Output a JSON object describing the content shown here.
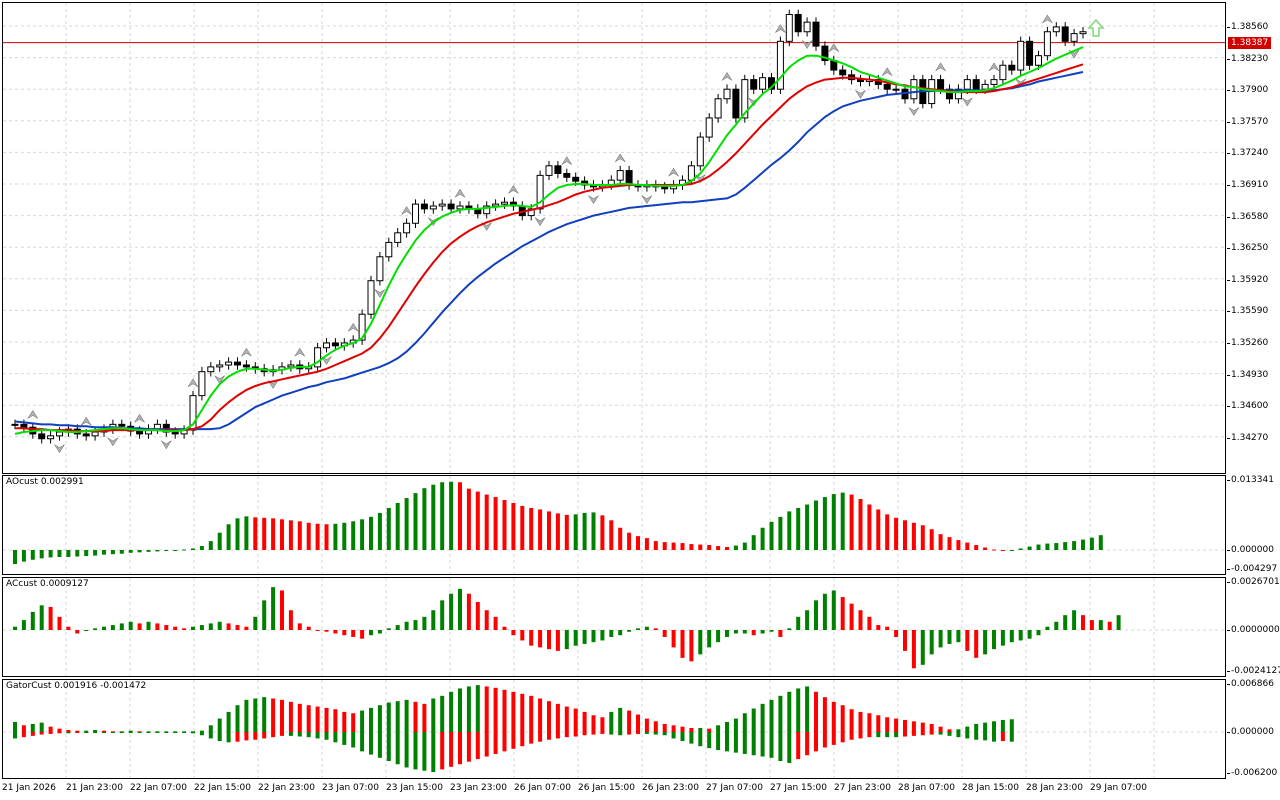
{
  "chart": {
    "price_scale": [
      "1.38560",
      "1.38230",
      "1.37900",
      "1.37570",
      "1.37240",
      "1.36910",
      "1.36580",
      "1.36250",
      "1.35920",
      "1.35590",
      "1.35260",
      "1.34930",
      "1.34600",
      "1.34270"
    ],
    "current_price": "1.38387",
    "up_arrow_color": "#7fd67f"
  },
  "indicators": {
    "ao": {
      "label": "AOcust 0.002991",
      "scale": [
        "0.013341",
        "0.000000",
        "-0.004297"
      ]
    },
    "ac": {
      "label": "ACcust 0.0009127",
      "scale": [
        "0.0026701",
        "0.0000000",
        "-0.0024127"
      ]
    },
    "gator": {
      "label": "GatorCust 0.001916 -0.001472",
      "scale": [
        "0.006866",
        "0.000000",
        "-0.006200"
      ]
    }
  },
  "time_axis": [
    "21 Jan 2026",
    "21 Jan 23:00",
    "22 Jan 07:00",
    "22 Jan 15:00",
    "22 Jan 23:00",
    "23 Jan 07:00",
    "23 Jan 15:00",
    "23 Jan 23:00",
    "26 Jan 07:00",
    "26 Jan 15:00",
    "26 Jan 23:00",
    "27 Jan 07:00",
    "27 Jan 15:00",
    "27 Jan 23:00",
    "28 Jan 07:00",
    "28 Jan 15:00",
    "28 Jan 23:00",
    "29 Jan 07:00"
  ],
  "colors": {
    "up": "#008000",
    "down": "#ff0000",
    "lips": "#00e000",
    "teeth": "#e00000",
    "jaw": "#1040c0",
    "grid": "#d8d8d8",
    "price_line": "#d00000"
  },
  "chart_data": [
    {
      "type": "candlestick",
      "title": "",
      "ylim": [
        1.3405,
        1.3895
      ],
      "close_path": [
        1.344,
        1.3437,
        1.343,
        1.3425,
        1.3428,
        1.3432,
        1.3435,
        1.343,
        1.3428,
        1.3432,
        1.3435,
        1.344,
        1.3438,
        1.3433,
        1.343,
        1.3435,
        1.344,
        1.3432,
        1.343,
        1.3434,
        1.347,
        1.3495,
        1.35,
        1.3502,
        1.3505,
        1.3502,
        1.35,
        1.3498,
        1.3495,
        1.3497,
        1.35,
        1.3502,
        1.3498,
        1.35,
        1.352,
        1.3525,
        1.3522,
        1.3525,
        1.3528,
        1.3555,
        1.359,
        1.3615,
        1.363,
        1.364,
        1.365,
        1.367,
        1.3665,
        1.3668,
        1.367,
        1.3665,
        1.3668,
        1.3665,
        1.366,
        1.3668,
        1.367,
        1.3672,
        1.3668,
        1.3658,
        1.3665,
        1.37,
        1.371,
        1.3702,
        1.3698,
        1.3694,
        1.369,
        1.3688,
        1.369,
        1.3695,
        1.3705,
        1.369,
        1.3688,
        1.369,
        1.3688,
        1.3686,
        1.369,
        1.3695,
        1.371,
        1.374,
        1.376,
        1.378,
        1.379,
        1.376,
        1.38,
        1.379,
        1.3802,
        1.379,
        1.384,
        1.3868,
        1.385,
        1.386,
        1.3835,
        1.382,
        1.381,
        1.3805,
        1.38,
        1.3798,
        1.38,
        1.3795,
        1.379,
        1.379,
        1.378,
        1.38,
        1.3775,
        1.38,
        1.379,
        1.378,
        1.379,
        1.38,
        1.379,
        1.3795,
        1.38,
        1.3815,
        1.381,
        1.384,
        1.3815,
        1.3825,
        1.385,
        1.3855,
        1.384,
        1.3848,
        1.385
      ],
      "lips": [
        1.343,
        1.3432,
        1.3433,
        1.3434,
        1.3434,
        1.3433,
        1.3432,
        1.3432,
        1.3433,
        1.3434,
        1.3435,
        1.3436,
        1.3436,
        1.3435,
        1.3434,
        1.3434,
        1.3434,
        1.3433,
        1.3433,
        1.3434,
        1.344,
        1.3455,
        1.347,
        1.3482,
        1.349,
        1.3495,
        1.3498,
        1.3498,
        1.3497,
        1.3496,
        1.3497,
        1.3499,
        1.35,
        1.35,
        1.3505,
        1.3512,
        1.3518,
        1.3522,
        1.3525,
        1.353,
        1.3545,
        1.3565,
        1.3585,
        1.3603,
        1.3618,
        1.3632,
        1.3643,
        1.3651,
        1.3657,
        1.3661,
        1.3664,
        1.3665,
        1.3665,
        1.3666,
        1.3667,
        1.3668,
        1.3669,
        1.3668,
        1.3667,
        1.3672,
        1.368,
        1.3687,
        1.369,
        1.3691,
        1.3691,
        1.369,
        1.369,
        1.369,
        1.3691,
        1.3691,
        1.369,
        1.369,
        1.3689,
        1.3689,
        1.3689,
        1.369,
        1.3694,
        1.3702,
        1.3714,
        1.3728,
        1.3742,
        1.3753,
        1.3765,
        1.3775,
        1.3785,
        1.3792,
        1.3802,
        1.3813,
        1.382,
        1.3825,
        1.3825,
        1.3823,
        1.382,
        1.3817,
        1.3813,
        1.3808,
        1.3805,
        1.3802,
        1.3799,
        1.3796,
        1.3793,
        1.3792,
        1.379,
        1.3789,
        1.3788,
        1.3787,
        1.3787,
        1.3788,
        1.3788,
        1.3789,
        1.3791,
        1.3795,
        1.3799,
        1.3804,
        1.3808,
        1.3812,
        1.3817,
        1.3822,
        1.3826,
        1.383,
        1.3834
      ],
      "teeth": [
        1.3436,
        1.3436,
        1.3435,
        1.3435,
        1.3434,
        1.3434,
        1.3434,
        1.3433,
        1.3433,
        1.3433,
        1.3433,
        1.3434,
        1.3434,
        1.3434,
        1.3434,
        1.3434,
        1.3434,
        1.3434,
        1.3434,
        1.3434,
        1.3435,
        1.3438,
        1.3445,
        1.3455,
        1.3463,
        1.347,
        1.3476,
        1.348,
        1.3483,
        1.3485,
        1.3487,
        1.3489,
        1.3491,
        1.3493,
        1.3495,
        1.3498,
        1.3502,
        1.3506,
        1.351,
        1.3514,
        1.352,
        1.353,
        1.3542,
        1.3556,
        1.357,
        1.3584,
        1.3597,
        1.3609,
        1.362,
        1.3629,
        1.3636,
        1.3642,
        1.3647,
        1.3651,
        1.3654,
        1.3657,
        1.366,
        1.3662,
        1.3664,
        1.3666,
        1.3669,
        1.3672,
        1.3676,
        1.368,
        1.3683,
        1.3685,
        1.3687,
        1.3688,
        1.3689,
        1.369,
        1.369,
        1.369,
        1.369,
        1.369,
        1.369,
        1.369,
        1.3691,
        1.3694,
        1.3699,
        1.3706,
        1.3714,
        1.3723,
        1.3733,
        1.3743,
        1.3753,
        1.3762,
        1.3771,
        1.378,
        1.3787,
        1.3793,
        1.3797,
        1.38,
        1.3801,
        1.3802,
        1.3802,
        1.3801,
        1.38,
        1.3799,
        1.3797,
        1.3795,
        1.3794,
        1.3792,
        1.3791,
        1.379,
        1.3789,
        1.3788,
        1.3787,
        1.3787,
        1.3787,
        1.3787,
        1.3788,
        1.379,
        1.3792,
        1.3795,
        1.3798,
        1.3801,
        1.3804,
        1.3807,
        1.381,
        1.3813,
        1.3816
      ],
      "jaw": [
        1.3443,
        1.3442,
        1.3441,
        1.344,
        1.344,
        1.3439,
        1.3439,
        1.3438,
        1.3438,
        1.3437,
        1.3437,
        1.3437,
        1.3436,
        1.3436,
        1.3436,
        1.3435,
        1.3435,
        1.3435,
        1.3435,
        1.3435,
        1.3435,
        1.3435,
        1.3435,
        1.3436,
        1.344,
        1.3446,
        1.3452,
        1.3458,
        1.3462,
        1.3466,
        1.347,
        1.3473,
        1.3476,
        1.3479,
        1.3481,
        1.3484,
        1.3486,
        1.3488,
        1.3491,
        1.3494,
        1.3497,
        1.35,
        1.3504,
        1.3509,
        1.3516,
        1.3525,
        1.3535,
        1.3546,
        1.3557,
        1.3567,
        1.3577,
        1.3586,
        1.3594,
        1.3601,
        1.3608,
        1.3614,
        1.362,
        1.3626,
        1.3631,
        1.3636,
        1.3641,
        1.3645,
        1.3649,
        1.3652,
        1.3655,
        1.3658,
        1.366,
        1.3662,
        1.3664,
        1.3666,
        1.3667,
        1.3668,
        1.3669,
        1.367,
        1.3671,
        1.3672,
        1.3672,
        1.3673,
        1.3674,
        1.3675,
        1.3676,
        1.368,
        1.3687,
        1.3695,
        1.3703,
        1.3711,
        1.3718,
        1.3726,
        1.3735,
        1.3745,
        1.3753,
        1.3761,
        1.3767,
        1.3772,
        1.3775,
        1.3778,
        1.378,
        1.3782,
        1.3784,
        1.3785,
        1.3786,
        1.3787,
        1.3788,
        1.3788,
        1.3789,
        1.3789,
        1.3789,
        1.3789,
        1.3789,
        1.3789,
        1.3789,
        1.379,
        1.3791,
        1.3793,
        1.3795,
        1.3798,
        1.38,
        1.3802,
        1.3804,
        1.3806,
        1.3808
      ],
      "horizontal_line": 1.38387
    },
    {
      "type": "bar",
      "title": "AOcust 0.002991",
      "ylim": [
        -0.004297,
        0.013341
      ],
      "values": [
        -0.003,
        -0.0025,
        -0.0021,
        -0.0018,
        -0.0016,
        -0.0015,
        -0.0015,
        -0.0014,
        -0.0013,
        -0.0012,
        -0.001,
        -0.0009,
        -0.0008,
        -0.0006,
        -0.0005,
        -0.0004,
        -0.0003,
        -0.0002,
        -0.0001,
        0.0001,
        0.0003,
        0.0008,
        0.0018,
        0.0035,
        0.0052,
        0.0064,
        0.0068,
        0.0066,
        0.0065,
        0.0064,
        0.0062,
        0.006,
        0.0058,
        0.0055,
        0.0053,
        0.0052,
        0.0053,
        0.0055,
        0.0058,
        0.0062,
        0.0067,
        0.0075,
        0.0085,
        0.0095,
        0.0105,
        0.0115,
        0.0125,
        0.0132,
        0.0137,
        0.0138,
        0.0137,
        0.0124,
        0.0118,
        0.0112,
        0.0107,
        0.0101,
        0.0095,
        0.0089,
        0.0085,
        0.0082,
        0.0078,
        0.0074,
        0.0071,
        0.0072,
        0.0075,
        0.0076,
        0.007,
        0.006,
        0.0045,
        0.0035,
        0.0028,
        0.0024,
        0.0018,
        0.0016,
        0.0015,
        0.0014,
        0.0012,
        0.0011,
        0.001,
        0.0008,
        0.0006,
        0.0009,
        0.0015,
        0.003,
        0.0045,
        0.0057,
        0.0067,
        0.0078,
        0.0085,
        0.0092,
        0.01,
        0.0107,
        0.0113,
        0.0116,
        0.0112,
        0.0103,
        0.0092,
        0.0082,
        0.0072,
        0.0065,
        0.006,
        0.0055,
        0.005,
        0.0042,
        0.0032,
        0.0026,
        0.002,
        0.0015,
        0.001,
        0.0005,
        0.0001,
        -0.0002,
        0.0,
        0.0003,
        0.0007,
        0.0011,
        0.0013,
        0.0014,
        0.0016,
        0.0018,
        0.0021,
        0.0025,
        0.003
      ]
    },
    {
      "type": "bar",
      "title": "ACcust 0.0009127",
      "ylim": [
        -0.0024127,
        0.0026701
      ],
      "values": [
        0.0002,
        0.0006,
        0.0011,
        0.0015,
        0.0014,
        0.0008,
        0.0002,
        -0.0002,
        0.0,
        0.0001,
        0.0002,
        0.0003,
        0.0004,
        0.0005,
        0.0004,
        0.0005,
        0.0004,
        0.0003,
        0.0002,
        0.0001,
        0.0002,
        0.0003,
        0.0004,
        0.0005,
        0.0004,
        0.0003,
        0.0002,
        0.0008,
        0.0018,
        0.0026,
        0.0024,
        0.0012,
        0.0004,
        0.0002,
        0.0,
        -0.0001,
        -0.0002,
        -0.0003,
        -0.0004,
        -0.0005,
        -0.0003,
        -0.0002,
        0.0001,
        0.0003,
        0.0005,
        0.0006,
        0.0008,
        0.0012,
        0.0018,
        0.0022,
        0.0025,
        0.0022,
        0.0017,
        0.0012,
        0.0008,
        0.0002,
        -0.0003,
        -0.0006,
        -0.0009,
        -0.001,
        -0.0011,
        -0.0012,
        -0.0011,
        -0.0009,
        -0.0008,
        -0.0007,
        -0.0006,
        -0.0004,
        -0.0003,
        -0.0001,
        0.0001,
        0.0002,
        0.0001,
        -0.0004,
        -0.001,
        -0.0016,
        -0.0018,
        -0.0014,
        -0.001,
        -0.0007,
        -0.0004,
        -0.0002,
        -0.0002,
        -0.0003,
        -0.0002,
        -0.0001,
        -0.0004,
        0.0001,
        0.0008,
        0.0012,
        0.0018,
        0.0022,
        0.0024,
        0.002,
        0.0016,
        0.0012,
        0.0008,
        0.0003,
        0.0002,
        -0.0004,
        -0.0012,
        -0.0022,
        -0.002,
        -0.0014,
        -0.001,
        -0.0008,
        -0.0007,
        -0.0012,
        -0.0016,
        -0.0014,
        -0.0011,
        -0.0009,
        -0.0007,
        -0.0006,
        -0.0005,
        -0.0003,
        0.0002,
        0.0005,
        0.0009,
        0.0012,
        0.0009,
        0.0006,
        0.0006,
        0.0005,
        0.0009
      ]
    },
    {
      "type": "bar",
      "title": "GatorCust 0.001916 -0.001472",
      "ylim": [
        -0.0062,
        0.006866
      ],
      "upper": [
        0.0015,
        0.001,
        0.0012,
        0.0014,
        0.0008,
        0.0005,
        0.0003,
        0.0002,
        0.0002,
        0.0003,
        0.0002,
        0.0001,
        0.0001,
        0.0002,
        0.0001,
        0.0001,
        0.0001,
        0.0001,
        0.0001,
        0.0001,
        0.0001,
        0.0002,
        0.001,
        0.002,
        0.003,
        0.004,
        0.0048,
        0.005,
        0.0052,
        0.005,
        0.0048,
        0.0045,
        0.0042,
        0.004,
        0.0038,
        0.0036,
        0.0034,
        0.003,
        0.0028,
        0.0032,
        0.0036,
        0.004,
        0.0044,
        0.0046,
        0.0048,
        0.0045,
        0.0042,
        0.005,
        0.0054,
        0.006,
        0.0065,
        0.0068,
        0.007,
        0.0068,
        0.0066,
        0.0063,
        0.006,
        0.0057,
        0.0054,
        0.005,
        0.0046,
        0.0042,
        0.0038,
        0.0035,
        0.003,
        0.0025,
        0.0022,
        0.003,
        0.0036,
        0.0032,
        0.0026,
        0.002,
        0.0016,
        0.0012,
        0.001,
        0.0008,
        0.0006,
        0.0006,
        0.0005,
        0.001,
        0.0015,
        0.002,
        0.0028,
        0.0035,
        0.0042,
        0.0048,
        0.0054,
        0.006,
        0.0065,
        0.0068,
        0.006,
        0.0052,
        0.0045,
        0.004,
        0.0034,
        0.003,
        0.0028,
        0.0025,
        0.0022,
        0.002,
        0.0018,
        0.0016,
        0.0014,
        0.0012,
        0.0008,
        0.0004,
        0.0004,
        0.0008,
        0.0012,
        0.0014,
        0.0016,
        0.0018,
        0.0019
      ],
      "lower": [
        -0.001,
        -0.0008,
        -0.0006,
        -0.0004,
        -0.0003,
        -0.0002,
        -0.0002,
        -0.0001,
        -0.0001,
        -0.0001,
        -0.0001,
        -0.0001,
        -0.0001,
        -0.0001,
        -0.0001,
        -0.0001,
        -0.0001,
        -0.0001,
        -0.0001,
        -0.0001,
        -0.0002,
        -0.0005,
        -0.001,
        -0.0014,
        -0.0016,
        -0.0015,
        -0.0013,
        -0.0012,
        -0.001,
        -0.0008,
        -0.0006,
        -0.0006,
        -0.0007,
        -0.0008,
        -0.001,
        -0.0012,
        -0.0016,
        -0.002,
        -0.0024,
        -0.003,
        -0.0035,
        -0.004,
        -0.0045,
        -0.005,
        -0.0055,
        -0.0058,
        -0.006,
        -0.0062,
        -0.0058,
        -0.0054,
        -0.005,
        -0.0046,
        -0.0042,
        -0.0038,
        -0.0034,
        -0.003,
        -0.0026,
        -0.0022,
        -0.0018,
        -0.0015,
        -0.0012,
        -0.001,
        -0.0008,
        -0.0007,
        -0.0005,
        -0.0004,
        -0.0003,
        -0.0004,
        -0.0005,
        -0.0004,
        -0.0003,
        -0.0003,
        -0.0004,
        -0.0005,
        -0.001,
        -0.0014,
        -0.0018,
        -0.0022,
        -0.0025,
        -0.0028,
        -0.003,
        -0.0032,
        -0.0034,
        -0.0036,
        -0.0038,
        -0.004,
        -0.0045,
        -0.0048,
        -0.0042,
        -0.0036,
        -0.003,
        -0.0024,
        -0.002,
        -0.0016,
        -0.0012,
        -0.001,
        -0.0008,
        -0.0008,
        -0.0008,
        -0.0008,
        -0.0007,
        -0.0006,
        -0.0005,
        -0.0004,
        -0.0004,
        -0.0006,
        -0.0008,
        -0.001,
        -0.0012,
        -0.0013,
        -0.0015,
        -0.0014,
        -0.0015
      ]
    }
  ]
}
